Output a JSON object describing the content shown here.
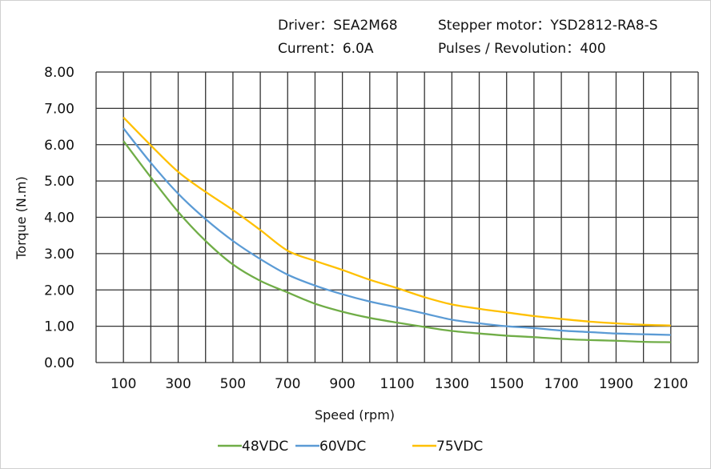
{
  "header": {
    "driver": "Driver：SEA2M68",
    "motor": "Stepper motor：YSD2812-RA8-S",
    "current": "Current：6.0A",
    "pulses": "Pulses / Revolution：400"
  },
  "chart_data": {
    "type": "line",
    "title": "",
    "xlabel": "Speed  (rpm)",
    "ylabel": "Torque (N.m)",
    "xlim": [
      0,
      2200
    ],
    "ylim": [
      0,
      8
    ],
    "grid": true,
    "legend_position": "bottom",
    "x_tick_labels": [
      "100",
      "300",
      "500",
      "700",
      "900",
      "1100",
      "1300",
      "1500",
      "1700",
      "1900",
      "2100"
    ],
    "y_tick_labels": [
      "0.00",
      "1.00",
      "2.00",
      "3.00",
      "4.00",
      "5.00",
      "6.00",
      "7.00",
      "8.00"
    ],
    "x": [
      100,
      200,
      300,
      400,
      500,
      600,
      700,
      800,
      900,
      1000,
      1100,
      1200,
      1300,
      1400,
      1500,
      1600,
      1700,
      1800,
      1900,
      2000,
      2100
    ],
    "series": [
      {
        "name": "48VDC",
        "color": "#70ad47",
        "values": [
          6.1,
          5.1,
          4.15,
          3.35,
          2.7,
          2.25,
          1.93,
          1.62,
          1.4,
          1.23,
          1.1,
          0.98,
          0.87,
          0.8,
          0.74,
          0.7,
          0.65,
          0.62,
          0.6,
          0.57,
          0.56
        ]
      },
      {
        "name": "60VDC",
        "color": "#5b9bd5",
        "values": [
          6.45,
          5.5,
          4.65,
          3.95,
          3.35,
          2.85,
          2.42,
          2.12,
          1.88,
          1.68,
          1.52,
          1.35,
          1.18,
          1.08,
          1.0,
          0.95,
          0.88,
          0.84,
          0.8,
          0.78,
          0.76
        ]
      },
      {
        "name": "75VDC",
        "color": "#ffc000",
        "values": [
          6.75,
          5.98,
          5.25,
          4.7,
          4.2,
          3.65,
          3.08,
          2.8,
          2.55,
          2.28,
          2.05,
          1.8,
          1.6,
          1.48,
          1.38,
          1.28,
          1.2,
          1.13,
          1.08,
          1.04,
          1.02
        ]
      }
    ]
  }
}
